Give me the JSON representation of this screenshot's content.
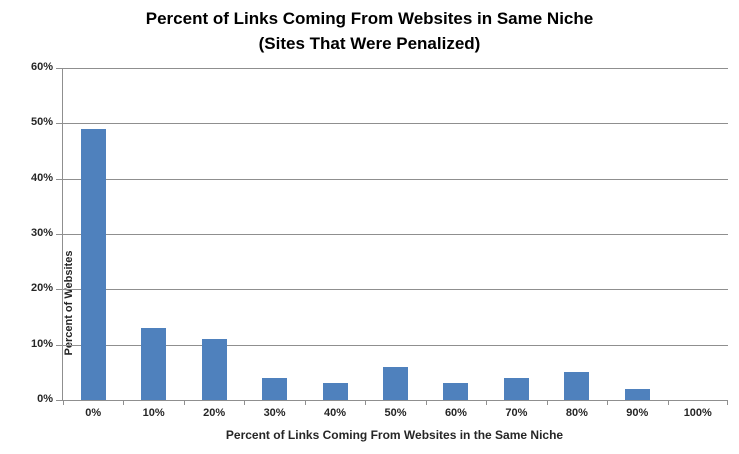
{
  "chart": {
    "title_line1": "Percent of Links Coming From Websites in Same Niche",
    "title_line2": "(Sites That Were Penalized)"
  },
  "chart_data": {
    "type": "bar",
    "title": "Percent of Links Coming From Websites in Same Niche (Sites That Were Penalized)",
    "categories": [
      "0%",
      "10%",
      "20%",
      "30%",
      "40%",
      "50%",
      "60%",
      "70%",
      "80%",
      "90%",
      "100%"
    ],
    "values": [
      49,
      13,
      11,
      4,
      3,
      6,
      3,
      4,
      5,
      2,
      0
    ],
    "xlabel": "Percent of Links Coming From Websites in the Same Niche",
    "ylabel": "Percent of Websites",
    "ylim": [
      0,
      60
    ],
    "ytick_step": 10,
    "ytick_labels": [
      "0%",
      "10%",
      "20%",
      "30%",
      "40%",
      "50%",
      "60%"
    ],
    "grid": true,
    "legend": false,
    "colors": {
      "bar": "#4F81BD",
      "gridline": "#8F8F8F",
      "axis": "#8F8F8F",
      "text": "#262626",
      "background": "#FFFFFF"
    }
  }
}
